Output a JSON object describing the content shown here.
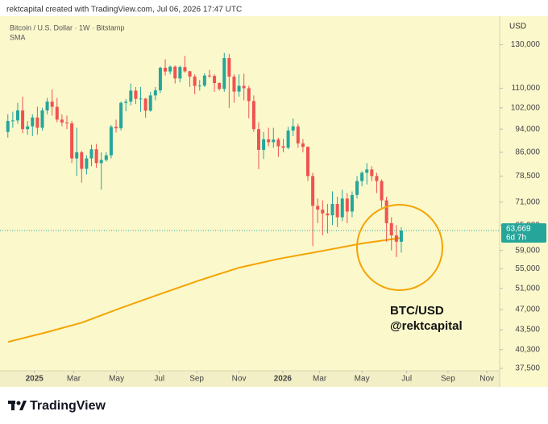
{
  "header": "rektcapital created with TradingView.com, Jul 06, 2026 17:47 UTC",
  "footer": {
    "logo": "TradingView"
  },
  "chart_data": {
    "type": "candlestick",
    "title": "Bitcoin / U.S. Dollar · 1W · Bitstamp",
    "currency": "USD",
    "log_scale": true,
    "grid": false,
    "up_color": "#26a69a",
    "down_color": "#ef5350",
    "open": [
      93000,
      97000,
      97200,
      101000,
      94000,
      95000,
      98300,
      94500,
      101000,
      104500,
      102400,
      97500,
      96400,
      96100,
      84000,
      86000,
      80700,
      84000,
      87000,
      82500,
      83500,
      85000,
      94800,
      94300,
      104000,
      104500,
      109000,
      105600,
      105700,
      100900,
      107000,
      109100,
      119000,
      117300,
      119500,
      114200,
      119300,
      117400,
      115000,
      111000,
      111100,
      115500,
      115300,
      112200,
      109700,
      123500,
      115000,
      108600,
      111000,
      110000,
      104700,
      94000,
      86800,
      90400,
      89400,
      90300,
      88000,
      87500,
      93500,
      95000,
      89000,
      87800,
      78500,
      70000,
      69000,
      68000,
      67500,
      70500,
      67000,
      72000,
      68500,
      73000,
      77000,
      79500,
      80500,
      78500,
      77000,
      71500,
      65500,
      62500,
      61000
    ],
    "high": [
      99500,
      100500,
      104000,
      106500,
      97000,
      99500,
      102500,
      102000,
      106000,
      109500,
      106000,
      99500,
      99000,
      97000,
      94500,
      86500,
      85000,
      88500,
      88800,
      86000,
      86000,
      95500,
      97500,
      104500,
      105500,
      112000,
      110500,
      110500,
      106000,
      108500,
      110500,
      119500,
      123000,
      120000,
      120000,
      120000,
      124500,
      117600,
      116000,
      113500,
      116500,
      118000,
      116000,
      112500,
      126000,
      125500,
      116000,
      116000,
      116300,
      111000,
      107000,
      96500,
      93000,
      94500,
      94500,
      91000,
      90500,
      94800,
      97900,
      96000,
      90500,
      88000,
      79500,
      72000,
      71500,
      70500,
      74000,
      72500,
      74500,
      73500,
      74000,
      78500,
      80000,
      82500,
      81500,
      79500,
      77500,
      72500,
      67000,
      65000,
      64500
    ],
    "low": [
      91000,
      94500,
      96000,
      92500,
      92000,
      91500,
      92000,
      93500,
      99500,
      99000,
      96500,
      95000,
      94000,
      82500,
      78500,
      76500,
      79000,
      81500,
      81000,
      74500,
      83000,
      84000,
      92800,
      93500,
      100700,
      103000,
      103500,
      100500,
      98200,
      100500,
      105000,
      108000,
      115500,
      116000,
      112000,
      112500,
      116800,
      110500,
      107500,
      109000,
      110500,
      114500,
      108500,
      109000,
      108500,
      102000,
      104000,
      106500,
      105000,
      98000,
      93000,
      80600,
      83800,
      88000,
      87500,
      84500,
      86000,
      87000,
      91500,
      87500,
      86000,
      77000,
      60000,
      65500,
      62500,
      63000,
      65000,
      64500,
      66000,
      65500,
      67000,
      72000,
      75500,
      76000,
      77000,
      73500,
      69500,
      61000,
      59000,
      57500,
      58500
    ],
    "close": [
      97000,
      97200,
      101000,
      94000,
      95000,
      98300,
      94500,
      101000,
      104500,
      102400,
      97500,
      96400,
      96100,
      84000,
      86000,
      80700,
      84000,
      87000,
      82500,
      83500,
      85000,
      94800,
      94300,
      104000,
      104500,
      109000,
      105600,
      105700,
      100900,
      107000,
      109100,
      119000,
      117300,
      119500,
      114200,
      119300,
      117400,
      115000,
      111000,
      111100,
      115500,
      115300,
      112200,
      109700,
      123500,
      115000,
      108600,
      111000,
      110000,
      104700,
      94000,
      86800,
      90400,
      89400,
      90300,
      88000,
      87500,
      93500,
      95000,
      89000,
      87800,
      78500,
      70000,
      69000,
      68000,
      67500,
      70500,
      67000,
      72000,
      68500,
      73000,
      77000,
      79500,
      80500,
      78500,
      77000,
      71500,
      65500,
      62500,
      61000,
      63669
    ],
    "price_label": "63,669",
    "countdown": "6d 7h",
    "series": [
      {
        "name": "SMA",
        "color": "#f5a300",
        "axis": "y",
        "x": [
          0,
          8,
          15,
          23,
          31,
          39,
          47,
          55,
          64,
          72,
          80
        ],
        "values": [
          41500,
          43100,
          44700,
          47300,
          49900,
          52600,
          55200,
          57100,
          58900,
          60600,
          61900
        ]
      }
    ],
    "annotations": [
      "BTC/USD",
      "@rektcapital"
    ],
    "highlight_color": "#f5a300",
    "xlim": [
      -1.6,
      100
    ],
    "xticks": [
      {
        "value": 5.4,
        "label": "2025"
      },
      {
        "value": 13.4,
        "label": "Mar"
      },
      {
        "value": 22.1,
        "label": "May"
      },
      {
        "value": 30.8,
        "label": "Jul"
      },
      {
        "value": 38.4,
        "label": "Sep"
      },
      {
        "value": 47.0,
        "label": "Nov"
      },
      {
        "value": 55.9,
        "label": "2026"
      },
      {
        "value": 63.4,
        "label": "Mar"
      },
      {
        "value": 72.0,
        "label": "May"
      },
      {
        "value": 81.1,
        "label": "Jul"
      },
      {
        "value": 89.5,
        "label": "Sep"
      },
      {
        "value": 97.4,
        "label": "Nov"
      }
    ],
    "ylim": [
      37150,
      144200
    ],
    "yticks": [
      {
        "value": 37500,
        "label": "37,500"
      },
      {
        "value": 40300,
        "label": "40,300"
      },
      {
        "value": 43500,
        "label": "43,500"
      },
      {
        "value": 47000,
        "label": "47,000"
      },
      {
        "value": 51000,
        "label": "51,000"
      },
      {
        "value": 55000,
        "label": "55,000"
      },
      {
        "value": 59000,
        "label": "59,000"
      },
      {
        "value": 65000,
        "label": "65,000"
      },
      {
        "value": 71000,
        "label": "71,000"
      },
      {
        "value": 78500,
        "label": "78,500"
      },
      {
        "value": 86000,
        "label": "86,000"
      },
      {
        "value": 94000,
        "label": "94,000"
      },
      {
        "value": 102000,
        "label": "102,000"
      },
      {
        "value": 110000,
        "label": "110,000"
      },
      {
        "value": 130000,
        "label": "130,000"
      }
    ]
  }
}
